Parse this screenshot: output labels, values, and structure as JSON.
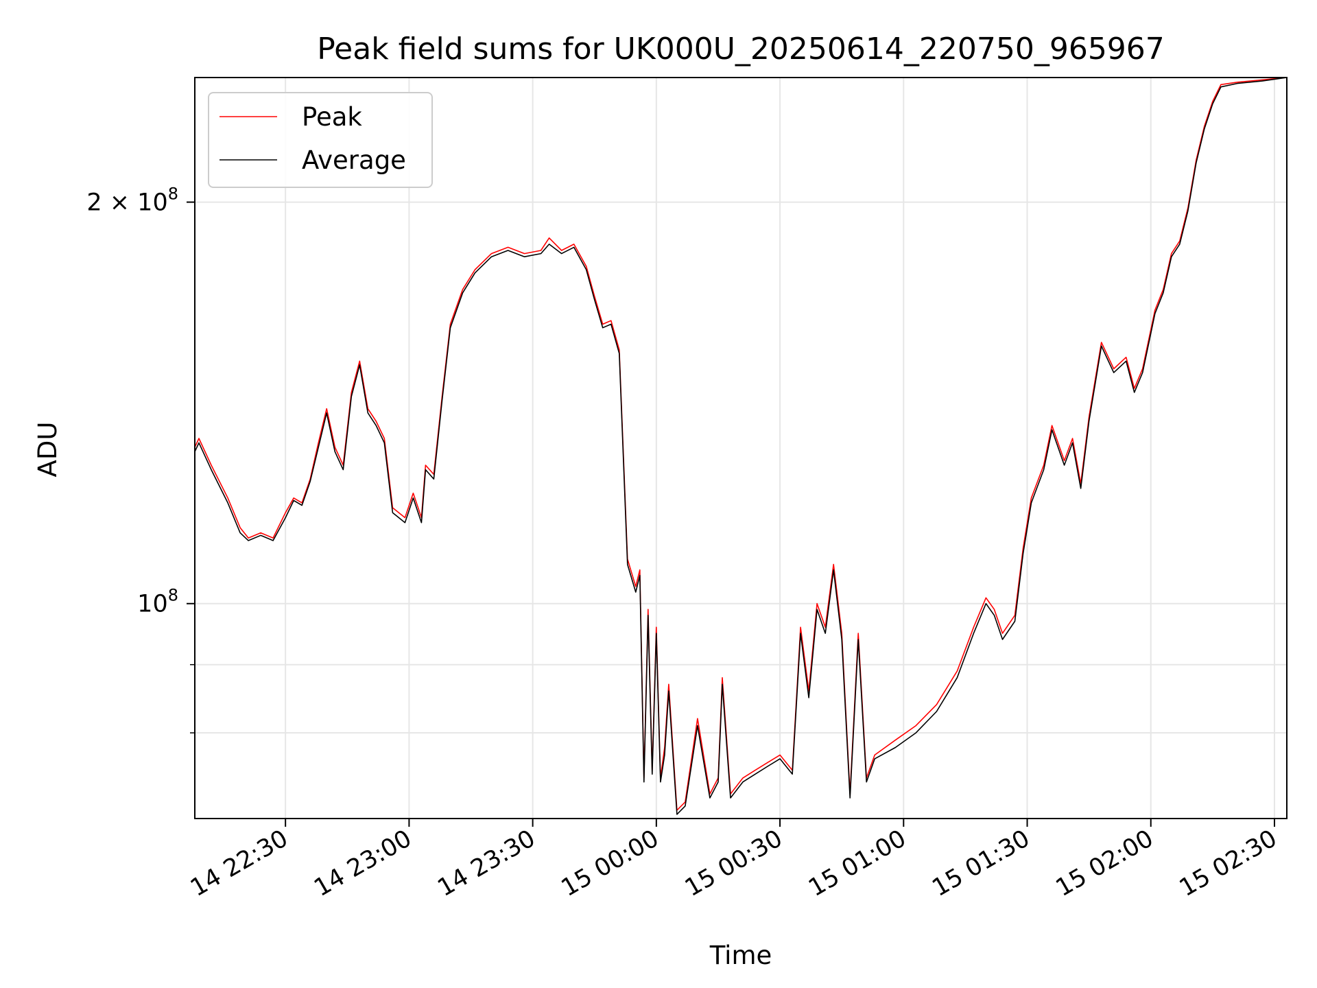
{
  "chart_data": {
    "type": "line",
    "title": "Peak field sums for UK000U_20250614_220750_965967",
    "xlabel": "Time",
    "ylabel": "ADU",
    "yscale": "log",
    "grid": true,
    "legend_position": "top-left",
    "xlim": [
      "2025-06-14 22:08",
      "2025-06-15 02:33"
    ],
    "ylim": [
      69000000,
      248000000
    ],
    "x_ticks": [
      {
        "t": "2025-06-14 22:30",
        "label": "14 22:30"
      },
      {
        "t": "2025-06-14 23:00",
        "label": "14 23:00"
      },
      {
        "t": "2025-06-14 23:30",
        "label": "14 23:30"
      },
      {
        "t": "2025-06-15 00:00",
        "label": "15 00:00"
      },
      {
        "t": "2025-06-15 00:30",
        "label": "15 00:30"
      },
      {
        "t": "2025-06-15 01:00",
        "label": "15 01:00"
      },
      {
        "t": "2025-06-15 01:30",
        "label": "15 01:30"
      },
      {
        "t": "2025-06-15 02:00",
        "label": "15 02:00"
      },
      {
        "t": "2025-06-15 02:30",
        "label": "15 02:30"
      }
    ],
    "y_ticks": [
      {
        "v": 100000000,
        "base": "10",
        "exp": "8",
        "mant": ""
      },
      {
        "v": 200000000,
        "base": "10",
        "exp": "8",
        "mant": "2 × "
      }
    ],
    "y_minor_ticks": [
      80000000,
      90000000
    ],
    "series": [
      {
        "name": "Peak",
        "color": "#ff0000",
        "x": [
          "2025-06-14 22:08",
          "2025-06-14 22:09",
          "2025-06-14 22:12",
          "2025-06-14 22:16",
          "2025-06-14 22:19",
          "2025-06-14 22:21",
          "2025-06-14 22:24",
          "2025-06-14 22:27",
          "2025-06-14 22:30",
          "2025-06-14 22:32",
          "2025-06-14 22:34",
          "2025-06-14 22:36",
          "2025-06-14 22:38",
          "2025-06-14 22:40",
          "2025-06-14 22:42",
          "2025-06-14 22:44",
          "2025-06-14 22:46",
          "2025-06-14 22:48",
          "2025-06-14 22:50",
          "2025-06-14 22:52",
          "2025-06-14 22:54",
          "2025-06-14 22:56",
          "2025-06-14 22:59",
          "2025-06-14 23:01",
          "2025-06-14 23:03",
          "2025-06-14 23:04",
          "2025-06-14 23:06",
          "2025-06-14 23:08",
          "2025-06-14 23:10",
          "2025-06-14 23:13",
          "2025-06-14 23:16",
          "2025-06-14 23:20",
          "2025-06-14 23:24",
          "2025-06-14 23:28",
          "2025-06-14 23:32",
          "2025-06-14 23:34",
          "2025-06-14 23:37",
          "2025-06-14 23:40",
          "2025-06-14 23:43",
          "2025-06-14 23:45",
          "2025-06-14 23:47",
          "2025-06-14 23:49",
          "2025-06-14 23:51",
          "2025-06-14 23:53",
          "2025-06-14 23:55",
          "2025-06-14 23:56",
          "2025-06-14 23:57",
          "2025-06-14 23:58",
          "2025-06-14 23:59",
          "2025-06-15 00:00",
          "2025-06-15 00:01",
          "2025-06-15 00:02",
          "2025-06-15 00:03",
          "2025-06-15 00:05",
          "2025-06-15 00:07",
          "2025-06-15 00:10",
          "2025-06-15 00:13",
          "2025-06-15 00:15",
          "2025-06-15 00:16",
          "2025-06-15 00:18",
          "2025-06-15 00:21",
          "2025-06-15 00:24",
          "2025-06-15 00:27",
          "2025-06-15 00:30",
          "2025-06-15 00:33",
          "2025-06-15 00:35",
          "2025-06-15 00:37",
          "2025-06-15 00:39",
          "2025-06-15 00:41",
          "2025-06-15 00:43",
          "2025-06-15 00:45",
          "2025-06-15 00:47",
          "2025-06-15 00:49",
          "2025-06-15 00:51",
          "2025-06-15 00:53",
          "2025-06-15 00:58",
          "2025-06-15 01:03",
          "2025-06-15 01:08",
          "2025-06-15 01:13",
          "2025-06-15 01:17",
          "2025-06-15 01:20",
          "2025-06-15 01:22",
          "2025-06-15 01:24",
          "2025-06-15 01:27",
          "2025-06-15 01:29",
          "2025-06-15 01:31",
          "2025-06-15 01:34",
          "2025-06-15 01:36",
          "2025-06-15 01:39",
          "2025-06-15 01:41",
          "2025-06-15 01:43",
          "2025-06-15 01:45",
          "2025-06-15 01:48",
          "2025-06-15 01:51",
          "2025-06-15 01:54",
          "2025-06-15 01:56",
          "2025-06-15 01:58",
          "2025-06-15 02:01",
          "2025-06-15 02:03",
          "2025-06-15 02:05",
          "2025-06-15 02:07",
          "2025-06-15 02:09",
          "2025-06-15 02:11",
          "2025-06-15 02:13",
          "2025-06-15 02:15",
          "2025-06-15 02:17",
          "2025-06-15 02:21",
          "2025-06-15 02:27",
          "2025-06-15 02:33"
        ],
        "values": [
          131000000,
          133000000,
          127000000,
          120000000,
          114000000,
          112000000,
          113000000,
          112000000,
          117000000,
          120000000,
          119000000,
          124000000,
          132000000,
          140000000,
          131000000,
          127000000,
          144000000,
          152000000,
          140000000,
          137000000,
          133000000,
          118000000,
          116000000,
          121000000,
          116000000,
          127000000,
          125000000,
          143000000,
          162000000,
          172000000,
          178000000,
          183000000,
          185000000,
          183000000,
          184000000,
          188000000,
          184000000,
          186000000,
          179000000,
          170000000,
          162000000,
          163000000,
          155000000,
          108000000,
          103000000,
          106000000,
          74000000,
          99000000,
          75000000,
          96000000,
          74000000,
          78000000,
          87000000,
          70000000,
          71000000,
          82000000,
          72000000,
          74000000,
          88000000,
          72000000,
          74000000,
          75000000,
          76000000,
          77000000,
          75000000,
          96000000,
          86000000,
          100000000,
          96000000,
          107000000,
          95000000,
          72000000,
          95000000,
          74000000,
          77000000,
          79000000,
          81000000,
          84000000,
          89000000,
          96000000,
          101000000,
          99000000,
          95000000,
          98000000,
          110000000,
          120000000,
          127000000,
          136000000,
          128000000,
          133000000,
          123000000,
          138000000,
          157000000,
          150000000,
          153000000,
          145000000,
          150000000,
          166000000,
          172000000,
          183000000,
          187000000,
          198000000,
          215000000,
          228000000,
          238000000,
          245000000,
          246000000,
          247000000,
          248000000
        ]
      },
      {
        "name": "Average",
        "color": "#000000",
        "x": [
          "2025-06-14 22:08",
          "2025-06-14 22:09",
          "2025-06-14 22:12",
          "2025-06-14 22:16",
          "2025-06-14 22:19",
          "2025-06-14 22:21",
          "2025-06-14 22:24",
          "2025-06-14 22:27",
          "2025-06-14 22:30",
          "2025-06-14 22:32",
          "2025-06-14 22:34",
          "2025-06-14 22:36",
          "2025-06-14 22:38",
          "2025-06-14 22:40",
          "2025-06-14 22:42",
          "2025-06-14 22:44",
          "2025-06-14 22:46",
          "2025-06-14 22:48",
          "2025-06-14 22:50",
          "2025-06-14 22:52",
          "2025-06-14 22:54",
          "2025-06-14 22:56",
          "2025-06-14 22:59",
          "2025-06-14 23:01",
          "2025-06-14 23:03",
          "2025-06-14 23:04",
          "2025-06-14 23:06",
          "2025-06-14 23:08",
          "2025-06-14 23:10",
          "2025-06-14 23:13",
          "2025-06-14 23:16",
          "2025-06-14 23:20",
          "2025-06-14 23:24",
          "2025-06-14 23:28",
          "2025-06-14 23:32",
          "2025-06-14 23:34",
          "2025-06-14 23:37",
          "2025-06-14 23:40",
          "2025-06-14 23:43",
          "2025-06-14 23:45",
          "2025-06-14 23:47",
          "2025-06-14 23:49",
          "2025-06-14 23:51",
          "2025-06-14 23:53",
          "2025-06-14 23:55",
          "2025-06-14 23:56",
          "2025-06-14 23:57",
          "2025-06-14 23:58",
          "2025-06-14 23:59",
          "2025-06-15 00:00",
          "2025-06-15 00:01",
          "2025-06-15 00:02",
          "2025-06-15 00:03",
          "2025-06-15 00:05",
          "2025-06-15 00:07",
          "2025-06-15 00:10",
          "2025-06-15 00:13",
          "2025-06-15 00:15",
          "2025-06-15 00:16",
          "2025-06-15 00:18",
          "2025-06-15 00:21",
          "2025-06-15 00:24",
          "2025-06-15 00:27",
          "2025-06-15 00:30",
          "2025-06-15 00:33",
          "2025-06-15 00:35",
          "2025-06-15 00:37",
          "2025-06-15 00:39",
          "2025-06-15 00:41",
          "2025-06-15 00:43",
          "2025-06-15 00:45",
          "2025-06-15 00:47",
          "2025-06-15 00:49",
          "2025-06-15 00:51",
          "2025-06-15 00:53",
          "2025-06-15 00:58",
          "2025-06-15 01:03",
          "2025-06-15 01:08",
          "2025-06-15 01:13",
          "2025-06-15 01:17",
          "2025-06-15 01:20",
          "2025-06-15 01:22",
          "2025-06-15 01:24",
          "2025-06-15 01:27",
          "2025-06-15 01:29",
          "2025-06-15 01:31",
          "2025-06-15 01:34",
          "2025-06-15 01:36",
          "2025-06-15 01:39",
          "2025-06-15 01:41",
          "2025-06-15 01:43",
          "2025-06-15 01:45",
          "2025-06-15 01:48",
          "2025-06-15 01:51",
          "2025-06-15 01:54",
          "2025-06-15 01:56",
          "2025-06-15 01:58",
          "2025-06-15 02:01",
          "2025-06-15 02:03",
          "2025-06-15 02:05",
          "2025-06-15 02:07",
          "2025-06-15 02:09",
          "2025-06-15 02:11",
          "2025-06-15 02:13",
          "2025-06-15 02:15",
          "2025-06-15 02:17",
          "2025-06-15 02:21",
          "2025-06-15 02:27",
          "2025-06-15 02:33"
        ],
        "values": [
          130000000,
          132000000,
          126000000,
          119000000,
          113000000,
          111500000,
          112500000,
          111500000,
          116000000,
          119500000,
          118500000,
          123500000,
          131000000,
          139000000,
          130000000,
          126000000,
          143000000,
          151000000,
          139000000,
          136000000,
          132000000,
          117000000,
          115000000,
          120000000,
          115000000,
          126000000,
          124000000,
          142000000,
          161000000,
          171000000,
          177000000,
          182000000,
          184000000,
          182000000,
          183000000,
          186000000,
          183000000,
          185000000,
          178000000,
          169000000,
          161000000,
          162000000,
          154000000,
          107000000,
          102000000,
          105000000,
          73500000,
          98000000,
          74500000,
          95000000,
          73500000,
          77000000,
          86000000,
          69500000,
          70500000,
          81000000,
          71500000,
          73500000,
          87000000,
          71500000,
          73500000,
          74500000,
          75500000,
          76500000,
          74500000,
          95000000,
          85000000,
          99000000,
          95000000,
          106000000,
          94000000,
          71500000,
          94000000,
          73500000,
          76500000,
          78000000,
          80000000,
          83000000,
          88000000,
          95000000,
          100000000,
          98000000,
          94000000,
          97000000,
          109000000,
          119000000,
          126000000,
          135000000,
          127000000,
          132000000,
          122000000,
          137000000,
          156000000,
          149000000,
          152000000,
          144000000,
          149000000,
          165000000,
          171000000,
          182000000,
          186000000,
          197000000,
          214000000,
          227000000,
          237000000,
          244000000,
          245500000,
          246500000,
          248000000
        ]
      }
    ]
  }
}
